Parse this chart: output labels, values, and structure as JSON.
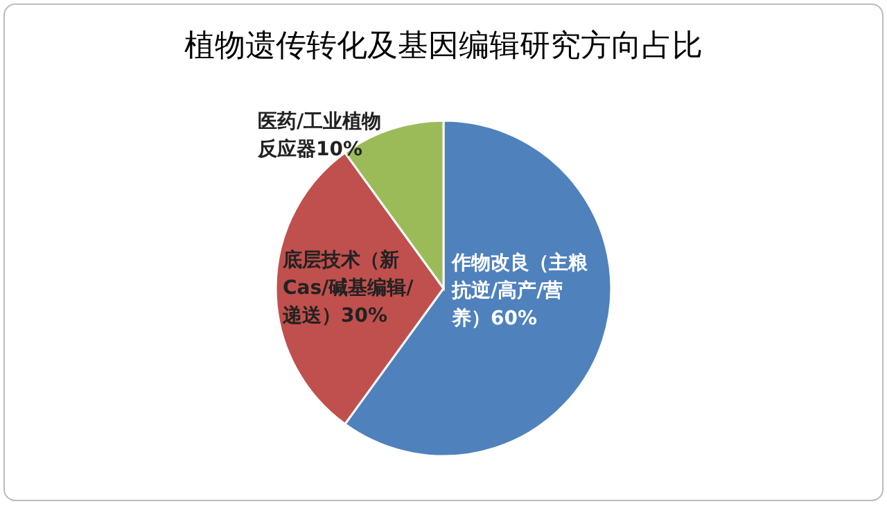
{
  "chart_data": {
    "type": "pie",
    "title": "植物遗传转化及基因编辑研究方向占比",
    "categories": [
      "作物改良（主粮抗逆/高产/营养）",
      "底层技术（新Cas/碱基编辑/递送）",
      "医药/工业植物反应器"
    ],
    "values": [
      60,
      30,
      10
    ],
    "value_labels": [
      "60%",
      "30%",
      "10%"
    ],
    "colors": [
      "#4f81bd",
      "#c0504d",
      "#9bbb59"
    ],
    "legend": false
  }
}
